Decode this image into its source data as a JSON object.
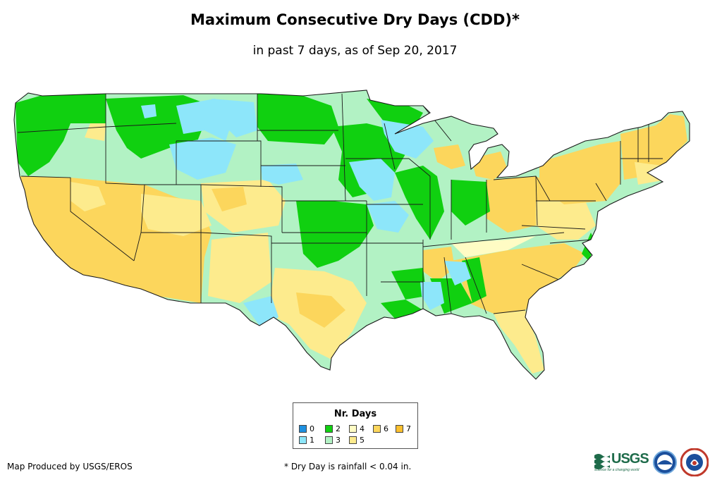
{
  "header": {
    "title": "Maximum Consecutive Dry Days (CDD)*",
    "subtitle": "in past 7 days, as of Sep 20, 2017"
  },
  "legend": {
    "title": "Nr. Days",
    "items": [
      {
        "label": "0",
        "color": "#1e90e0"
      },
      {
        "label": "1",
        "color": "#8de6fa"
      },
      {
        "label": "2",
        "color": "#10d010"
      },
      {
        "label": "3",
        "color": "#b2f2c4"
      },
      {
        "label": "4",
        "color": "#fffcc4"
      },
      {
        "label": "5",
        "color": "#fdeb8d"
      },
      {
        "label": "6",
        "color": "#fcd65c"
      },
      {
        "label": "7",
        "color": "#fcc02e"
      }
    ]
  },
  "footer": {
    "credit": "Map Produced by USGS/EROS",
    "footnote": "* Dry Day is rainfall < 0.04 in."
  },
  "logos": {
    "usgs": "USGS",
    "usgs_tagline": "science for a changing world"
  }
}
